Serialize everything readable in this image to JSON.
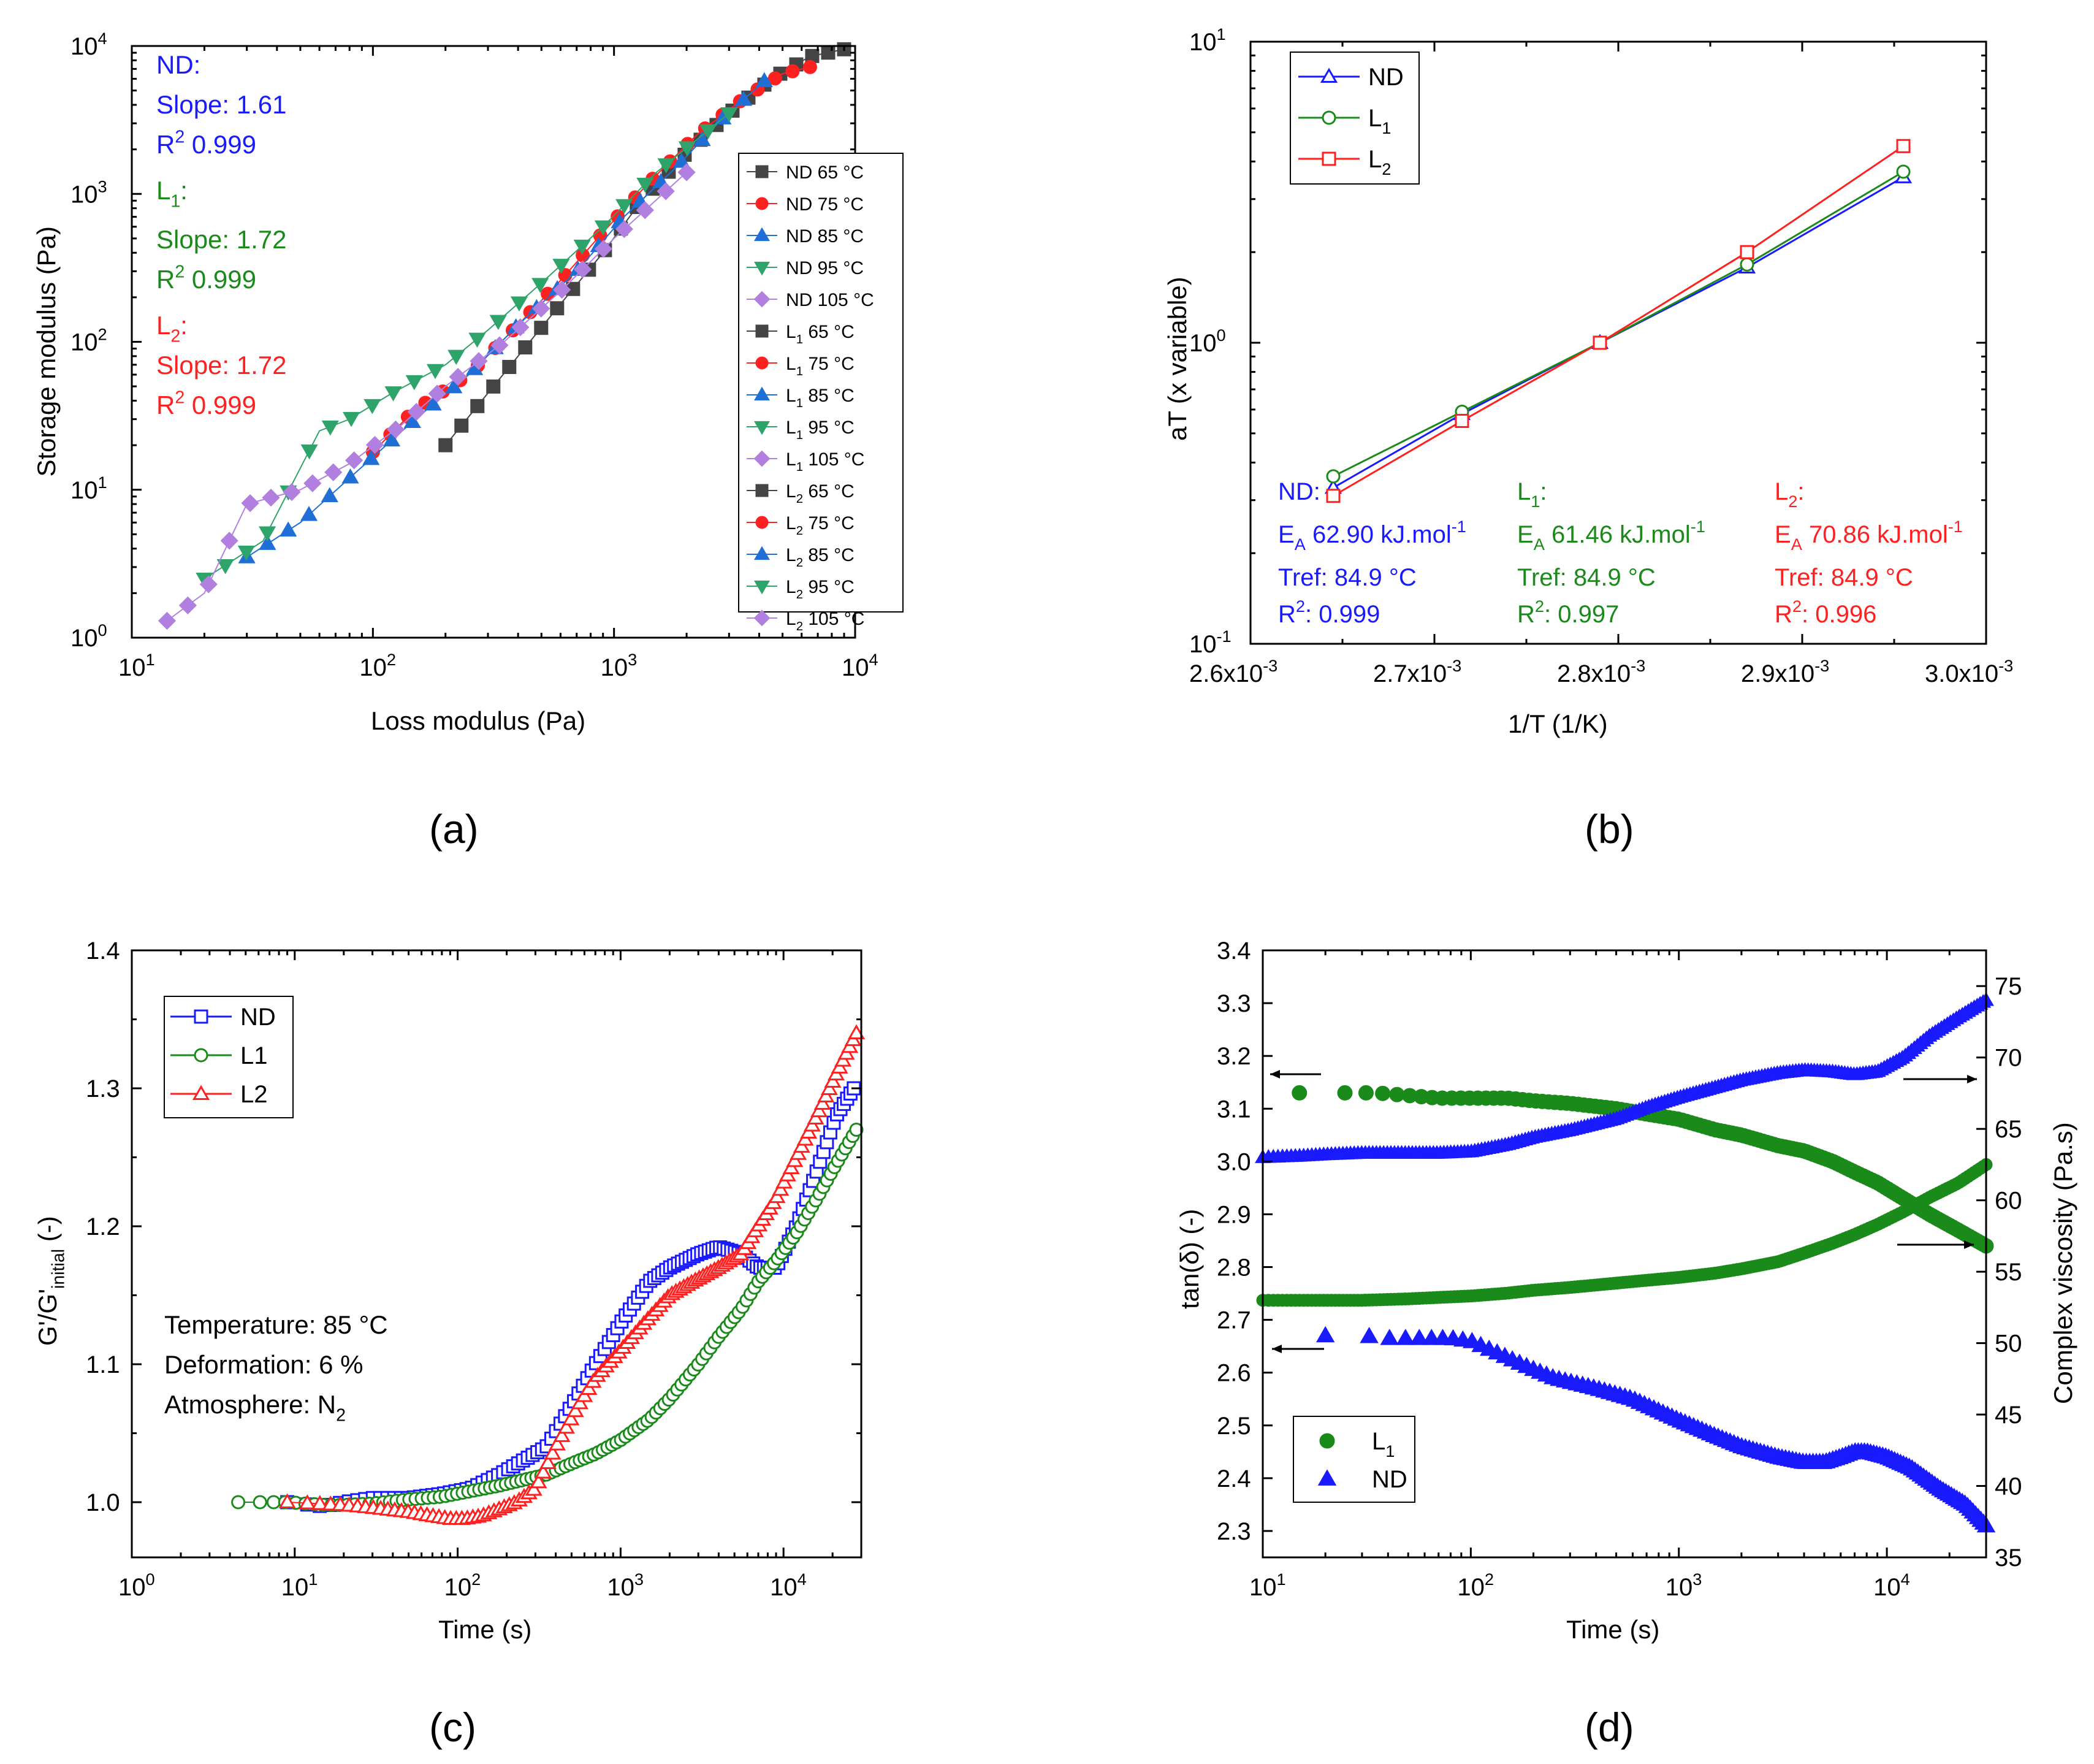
{
  "colors": {
    "nd": "#1a1aff",
    "l1": "#1a8a1a",
    "l2": "#ff2020",
    "gray": "#444444",
    "purple": "#b07fe0"
  },
  "panels": {
    "a": {
      "label": "(a)",
      "xlabel": "Loss modulus (Pa)",
      "ylabel": "Storage modulus (Pa)",
      "xticks": [
        "10",
        "10",
        "10",
        "10"
      ],
      "xtick_exps": [
        "1",
        "2",
        "3",
        "4"
      ],
      "yticks": [
        "10",
        "10",
        "10",
        "10",
        "10"
      ],
      "ytick_exps": [
        "0",
        "1",
        "2",
        "3",
        "4"
      ],
      "ann_nd_title": "ND:",
      "ann_nd_slope": "Slope: 1.61",
      "ann_nd_r2": " 0.999",
      "ann_l1_title": "L",
      "ann_l1_sub": "1",
      "ann_l1_colon": ":",
      "ann_l1_slope": "Slope: 1.72",
      "ann_l1_r2": " 0.999",
      "ann_l2_title": "L",
      "ann_l2_sub": "2",
      "ann_l2_colon": ":",
      "ann_l2_slope": "Slope: 1.72",
      "ann_l2_r2": " 0.999",
      "r": "R",
      "r_sup": "2"
    },
    "b": {
      "label": "(b)",
      "xlabel": "1/T  (1/K)",
      "ylabel": "aT (x variable)",
      "xticks": [
        "2.6x10",
        "2.7x10",
        "2.8x10",
        "2.9x10",
        "3.0x10"
      ],
      "xtick_exp": "-3",
      "yticks": [
        "10",
        "10",
        "10"
      ],
      "ytick_exps": [
        "-1",
        "0",
        "1"
      ]
    },
    "c": {
      "label": "(c)",
      "xlabel": "Time (s)",
      "ylabel": "G'/G'",
      "ylabel_sub": "initial",
      "ylabel_end": " (-)",
      "xticks": [
        "10",
        "10",
        "10",
        "10",
        "10"
      ],
      "xtick_exps": [
        "0",
        "1",
        "2",
        "3",
        "4"
      ],
      "yticks": [
        "1.0",
        "1.1",
        "1.2",
        "1.3",
        "1.4"
      ],
      "ann1": "Temperature: 85 °C",
      "ann2": "Deformation: 6 %",
      "ann3": "Atmosphere: N",
      "ann3_sub": "2"
    },
    "d": {
      "label": "(d)",
      "xlabel": "Time (s)",
      "ylabel_left": "tan(δ) (-)",
      "ylabel_right": "Complex viscosity (Pa.s)",
      "xticks": [
        "10",
        "10",
        "10",
        "10"
      ],
      "xtick_exps": [
        "1",
        "2",
        "3",
        "4"
      ],
      "yticks_left": [
        "2.3",
        "2.4",
        "2.5",
        "2.6",
        "2.7",
        "2.8",
        "2.9",
        "3.0",
        "3.1",
        "3.2",
        "3.3",
        "3.4"
      ],
      "yticks_right": [
        "35",
        "40",
        "45",
        "50",
        "55",
        "60",
        "65",
        "70",
        "75"
      ],
      "legend": [
        "L",
        "ND"
      ],
      "legend_sub": "1"
    }
  },
  "chart_data": [
    {
      "panel": "a",
      "type": "scatter",
      "title": "",
      "xlabel": "Loss modulus (Pa)",
      "ylabel": "Storage modulus (Pa)",
      "xscale": "log",
      "yscale": "log",
      "xlim": [
        10,
        10000
      ],
      "ylim": [
        1,
        10000
      ],
      "legend": [
        "ND 65 °C",
        "ND 75 °C",
        "ND 85 °C",
        "ND 95 °C",
        "ND 105 °C",
        "L1 65 °C",
        "L1 75 °C",
        "L1 85 °C",
        "L1 95 °C",
        "L1 105 °C",
        "L2 65 °C",
        "L2 75 °C",
        "L2 85 °C",
        "L2 95 °C",
        "L2 105 °C"
      ],
      "legend_entries": [
        {
          "pre": "ND",
          "sub": "",
          "post": " 65 °C",
          "marker": "square",
          "color": "#444444"
        },
        {
          "pre": "ND",
          "sub": "",
          "post": " 75 °C",
          "marker": "circle",
          "color": "#ff2020"
        },
        {
          "pre": "ND",
          "sub": "",
          "post": " 85 °C",
          "marker": "tri-up",
          "color": "#1f6fd6"
        },
        {
          "pre": "ND",
          "sub": "",
          "post": " 95 °C",
          "marker": "tri-down",
          "color": "#2ea36a"
        },
        {
          "pre": "ND",
          "sub": "",
          "post": " 105 °C",
          "marker": "diamond",
          "color": "#b07fe0"
        },
        {
          "pre": "L",
          "sub": "1",
          "post": " 65 °C",
          "marker": "square",
          "color": "#444444"
        },
        {
          "pre": "L",
          "sub": "1",
          "post": " 75 °C",
          "marker": "circle",
          "color": "#ff2020"
        },
        {
          "pre": "L",
          "sub": "1",
          "post": " 85 °C",
          "marker": "tri-up",
          "color": "#1f6fd6"
        },
        {
          "pre": "L",
          "sub": "1",
          "post": " 95 °C",
          "marker": "tri-down",
          "color": "#2ea36a"
        },
        {
          "pre": "L",
          "sub": "1",
          "post": " 105 °C",
          "marker": "diamond",
          "color": "#b07fe0"
        },
        {
          "pre": "L",
          "sub": "2",
          "post": " 65 °C",
          "marker": "square",
          "color": "#444444"
        },
        {
          "pre": "L",
          "sub": "2",
          "post": " 75 °C",
          "marker": "circle",
          "color": "#ff2020"
        },
        {
          "pre": "L",
          "sub": "2",
          "post": " 85 °C",
          "marker": "tri-up",
          "color": "#1f6fd6"
        },
        {
          "pre": "L",
          "sub": "2",
          "post": " 95 °C",
          "marker": "tri-down",
          "color": "#2ea36a"
        },
        {
          "pre": "L",
          "sub": "2",
          "post": " 105 °C",
          "marker": "diamond",
          "color": "#b07fe0"
        }
      ],
      "series": [
        {
          "name": "65 °C",
          "color": "#444444",
          "marker": "square",
          "x": [
            200,
            300,
            400,
            600,
            900,
            1300,
            2000,
            3000,
            4500,
            6500,
            9000
          ],
          "y": [
            20,
            45,
            80,
            180,
            400,
            900,
            1900,
            3500,
            6000,
            8500,
            9500
          ]
        },
        {
          "name": "75 °C",
          "color": "#ff2020",
          "marker": "circle",
          "x": [
            100,
            150,
            250,
            400,
            600,
            900,
            1400,
            2200,
            3500,
            5000,
            6500
          ],
          "y": [
            18,
            35,
            60,
            130,
            260,
            550,
            1200,
            2500,
            4500,
            6500,
            7200
          ]
        },
        {
          "name": "85 °C",
          "color": "#1f6fd6",
          "marker": "tri-up",
          "x": [
            30,
            50,
            80,
            150,
            250,
            400,
            700,
            1100,
            1800,
            2800,
            4200
          ],
          "y": [
            3.5,
            6,
            12,
            30,
            60,
            130,
            300,
            700,
            1500,
            3200,
            5800
          ]
        },
        {
          "name": "95 °C",
          "color": "#2ea36a",
          "marker": "tri-down",
          "x": [
            20,
            35,
            60,
            80,
            120,
            200,
            300,
            500,
            900,
            1500,
            3000
          ],
          "y": [
            2.5,
            4.5,
            25,
            30,
            45,
            70,
            120,
            250,
            600,
            1400,
            3500
          ]
        },
        {
          "name": "105 °C",
          "color": "#b07fe0",
          "marker": "diamond",
          "x": [
            14,
            20,
            30,
            50,
            80,
            130,
            200,
            350,
            600,
            1000,
            2000
          ],
          "y": [
            1.3,
            2,
            8,
            10,
            15,
            27,
            50,
            100,
            220,
            500,
            1400
          ]
        }
      ],
      "annotations": [
        {
          "group": "ND",
          "slope": 1.61,
          "r2": 0.999
        },
        {
          "group": "L1",
          "slope": 1.72,
          "r2": 0.999
        },
        {
          "group": "L2",
          "slope": 1.72,
          "r2": 0.999
        }
      ]
    },
    {
      "panel": "b",
      "type": "line",
      "title": "",
      "xlabel": "1/T  (1/K)",
      "ylabel": "aT (x variable)",
      "xlim": [
        0.0026,
        0.003
      ],
      "yscale": "log",
      "ylim": [
        0.1,
        10
      ],
      "x": [
        0.002645,
        0.002715,
        0.00279,
        0.00287,
        0.002955
      ],
      "series": [
        {
          "name": "ND",
          "color": "#1a1aff",
          "marker": "tri-up",
          "values": [
            0.33,
            0.58,
            1.0,
            1.78,
            3.55
          ]
        },
        {
          "name": "L1",
          "color": "#1a8a1a",
          "marker": "circle",
          "values": [
            0.36,
            0.59,
            1.0,
            1.82,
            3.7
          ]
        },
        {
          "name": "L2",
          "color": "#ff2020",
          "marker": "square",
          "values": [
            0.31,
            0.55,
            1.0,
            2.0,
            4.5
          ]
        }
      ],
      "legend_entries": [
        {
          "pre": "ND",
          "sub": ""
        },
        {
          "pre": "L",
          "sub": "1"
        },
        {
          "pre": "L",
          "sub": "2"
        }
      ],
      "annotations": [
        {
          "group": "ND",
          "title": "ND:",
          "ea": " 62.90 kJ.mol",
          "tref": "Tref: 84.9 °C",
          "r2": ": 0.999",
          "color": "#1a1aff"
        },
        {
          "group": "L1",
          "title_pre": "L",
          "title_sub": "1",
          "ea": " 61.46 kJ.mol",
          "tref": "Tref: 84.9 °C",
          "r2": ": 0.997",
          "color": "#1a8a1a"
        },
        {
          "group": "L2",
          "title_pre": "L",
          "title_sub": "2",
          "ea": " 70.86 kJ.mol",
          "tref": "Tref: 84.9 °C",
          "r2": ": 0.996",
          "color": "#ff2020"
        }
      ],
      "ea_letter": "E",
      "ea_sub": "A",
      "ea_sup": "-1",
      "r_letter": "R",
      "r_sup": "2"
    },
    {
      "panel": "c",
      "type": "scatter",
      "title": "",
      "xlabel": "Time (s)",
      "ylabel": "G'/G'initial (-)",
      "xscale": "log",
      "xlim": [
        1,
        30000
      ],
      "ylim": [
        0.98,
        1.4
      ],
      "series": [
        {
          "name": "ND",
          "color": "#1a1aff",
          "marker": "square",
          "x": [
            9,
            15,
            20,
            30,
            50,
            80,
            120,
            180,
            250,
            350,
            500,
            700,
            1000,
            1500,
            2000,
            3000,
            4000,
            5500,
            7000,
            9000,
            12000,
            16000,
            21000,
            27000
          ],
          "y": [
            1.0,
            0.997,
            1.0,
            1.003,
            1.003,
            1.006,
            1.01,
            1.02,
            1.03,
            1.04,
            1.07,
            1.1,
            1.13,
            1.16,
            1.17,
            1.18,
            1.185,
            1.18,
            1.17,
            1.17,
            1.2,
            1.24,
            1.28,
            1.3
          ]
        },
        {
          "name": "L1",
          "color": "#1a8a1a",
          "marker": "circle",
          "x": [
            4.5,
            9,
            15,
            20,
            30,
            50,
            80,
            120,
            180,
            250,
            350,
            500,
            700,
            1000,
            1500,
            2000,
            3000,
            4000,
            5500,
            7000,
            9000,
            12000,
            16000,
            21000,
            28000
          ],
          "y": [
            1.0,
            1.0,
            0.998,
            0.998,
            0.999,
            1.002,
            1.004,
            1.008,
            1.012,
            1.016,
            1.02,
            1.028,
            1.035,
            1.045,
            1.06,
            1.075,
            1.1,
            1.12,
            1.14,
            1.16,
            1.175,
            1.195,
            1.22,
            1.245,
            1.27
          ]
        },
        {
          "name": "L2",
          "color": "#ff2020",
          "marker": "tri-up",
          "x": [
            9,
            20,
            30,
            50,
            70,
            90,
            110,
            140,
            180,
            230,
            300,
            400,
            550,
            700,
            1000,
            1400,
            2000,
            2800,
            4000,
            5500,
            7000,
            9000,
            12000,
            16000,
            21000,
            28000
          ],
          "y": [
            1.0,
            0.998,
            0.996,
            0.993,
            0.99,
            0.988,
            0.988,
            0.99,
            0.995,
            1.0,
            1.01,
            1.04,
            1.07,
            1.09,
            1.11,
            1.13,
            1.15,
            1.16,
            1.17,
            1.18,
            1.2,
            1.22,
            1.25,
            1.28,
            1.31,
            1.34
          ]
        }
      ],
      "legend_entries": [
        "ND",
        "L1",
        "L2"
      ],
      "annotations": [
        "Temperature: 85 °C",
        "Deformation: 6 %",
        "Atmosphere: N2"
      ]
    },
    {
      "panel": "d",
      "type": "scatter",
      "title": "",
      "xlabel": "Time (s)",
      "ylabel": "tan(δ) (-)",
      "ylabel_right": "Complex viscosity (Pa.s)",
      "xscale": "log",
      "xlim": [
        10,
        30000
      ],
      "ylim": [
        2.27,
        3.4
      ],
      "ylim_right": [
        35,
        77.5
      ],
      "series": [
        {
          "name": "L1 tan(δ)",
          "axis": "left",
          "color": "#1a8a1a",
          "marker": "circle",
          "x": [
            15,
            23,
            35,
            50,
            70,
            100,
            150,
            200,
            300,
            500,
            700,
            1000,
            1500,
            2000,
            3000,
            4000,
            5500,
            7000,
            9000,
            12000,
            16000,
            22000,
            30000
          ],
          "y": [
            3.13,
            3.13,
            3.13,
            3.125,
            3.12,
            3.12,
            3.12,
            3.115,
            3.11,
            3.1,
            3.09,
            3.08,
            3.06,
            3.05,
            3.03,
            3.02,
            3.0,
            2.98,
            2.96,
            2.93,
            2.9,
            2.87,
            2.84
          ]
        },
        {
          "name": "L1 viscosity",
          "axis": "right",
          "color": "#1a8a1a",
          "marker": "circle",
          "x": [
            10,
            15,
            20,
            30,
            50,
            70,
            100,
            150,
            200,
            300,
            500,
            700,
            1000,
            1500,
            2000,
            3000,
            4000,
            5500,
            7000,
            9000,
            12000,
            16000,
            22000,
            30000
          ],
          "y": [
            53,
            53,
            53,
            53,
            53.1,
            53.2,
            53.3,
            53.5,
            53.7,
            53.9,
            54.2,
            54.4,
            54.6,
            54.9,
            55.2,
            55.7,
            56.3,
            57.0,
            57.6,
            58.3,
            59.2,
            60.2,
            61.2,
            62.5
          ]
        },
        {
          "name": "ND tan(δ)",
          "axis": "left",
          "color": "#1a1aff",
          "marker": "tri-up",
          "x": [
            20,
            30,
            40,
            50,
            60,
            70,
            80,
            100,
            130,
            190,
            250,
            400,
            600,
            1000,
            1500,
            2000,
            3000,
            4000,
            5000,
            6000,
            7000,
            8000,
            10000,
            13000,
            18000,
            24000,
            30000
          ],
          "y": [
            2.67,
            2.67,
            2.665,
            2.665,
            2.665,
            2.665,
            2.665,
            2.66,
            2.64,
            2.61,
            2.59,
            2.57,
            2.55,
            2.51,
            2.48,
            2.46,
            2.44,
            2.43,
            2.43,
            2.44,
            2.45,
            2.45,
            2.44,
            2.42,
            2.38,
            2.35,
            2.31
          ]
        },
        {
          "name": "ND viscosity",
          "axis": "right",
          "color": "#1a1aff",
          "marker": "tri-up",
          "x": [
            10,
            15,
            20,
            30,
            50,
            70,
            100,
            150,
            200,
            300,
            500,
            700,
            1000,
            1500,
            2000,
            3000,
            4000,
            5500,
            7000,
            9000,
            12000,
            16000,
            22000,
            30000
          ],
          "y": [
            63,
            63.1,
            63.2,
            63.3,
            63.3,
            63.3,
            63.4,
            63.9,
            64.4,
            64.9,
            65.7,
            66.5,
            67.2,
            67.9,
            68.4,
            68.9,
            69.1,
            69.0,
            68.8,
            69.0,
            70.0,
            71.5,
            72.8,
            74.0
          ]
        }
      ],
      "legend_entries": [
        {
          "pre": "L",
          "sub": "1"
        },
        {
          "pre": "ND",
          "sub": ""
        }
      ]
    }
  ]
}
